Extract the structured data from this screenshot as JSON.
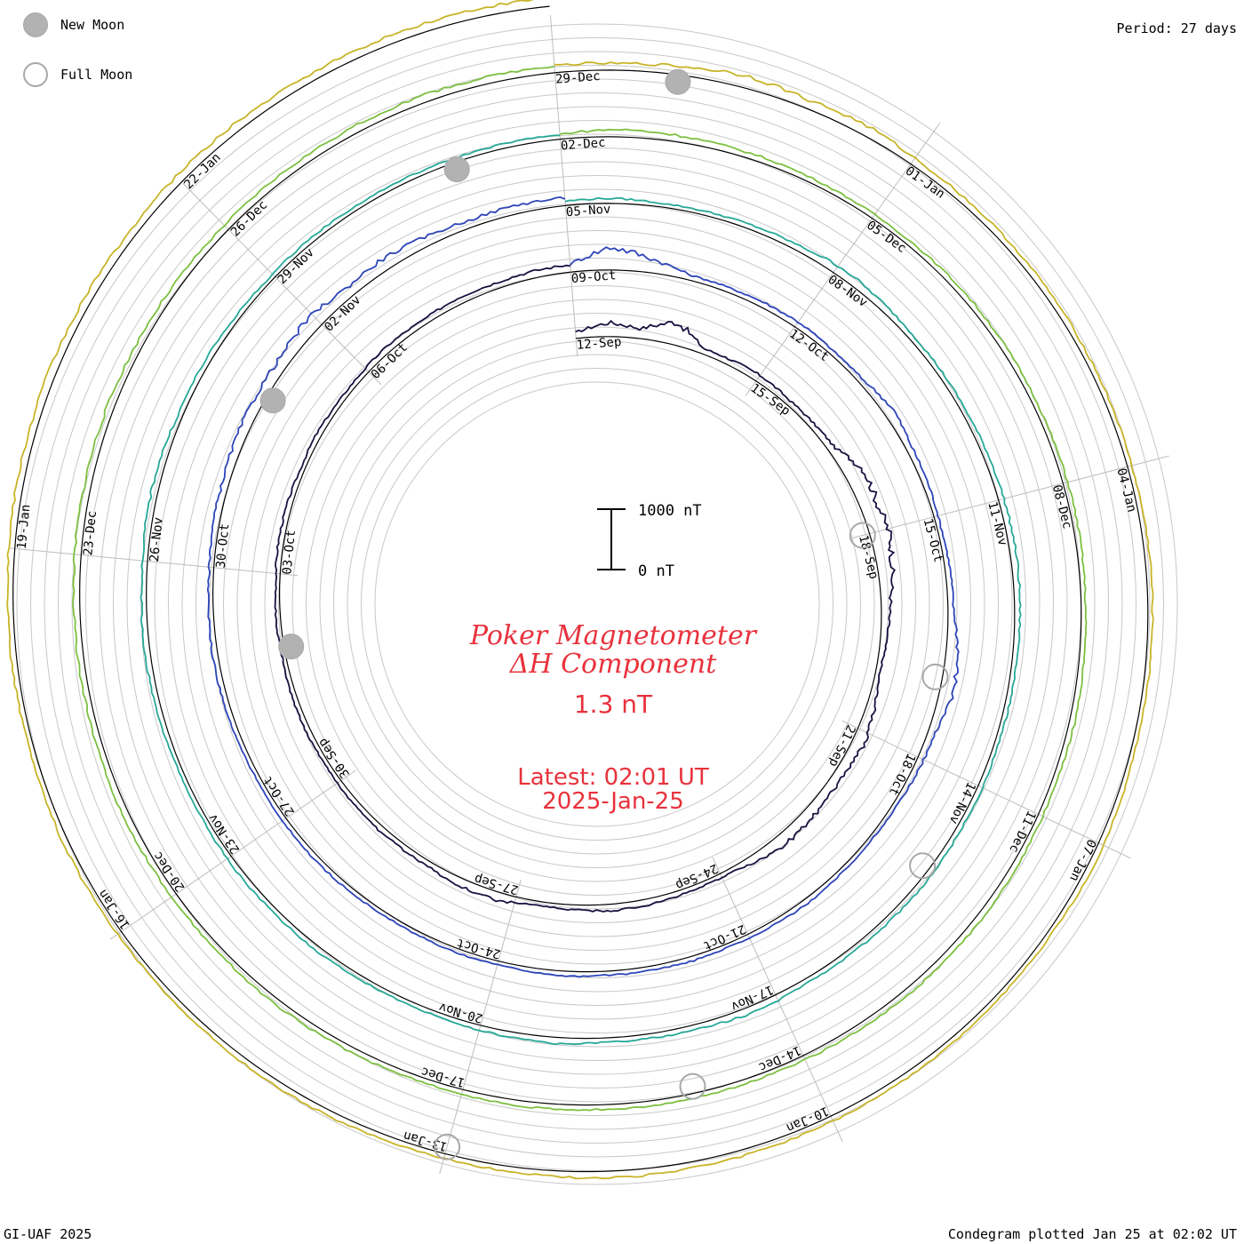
{
  "legend": {
    "new_moon": "New Moon",
    "full_moon": "Full Moon"
  },
  "period": "Period: 27 days",
  "title": {
    "line1": "Poker Magnetometer",
    "line2": "ΔH Component"
  },
  "current_value": "1.3 nT",
  "latest": {
    "time": "Latest: 02:01 UT",
    "date": "2025-Jan-25"
  },
  "scale_bar": {
    "top_label": "1000 nT",
    "bottom_label": "0 nT"
  },
  "footer": {
    "left": "GI-UAF 2025",
    "right": "Condegram plotted Jan 25 at 02:02 UT"
  },
  "chart_data": {
    "type": "line",
    "subtype": "spiral condegram (polar, 27-day period)",
    "period_days": 27,
    "units": "nT",
    "scale_nT": [
      0,
      1000
    ],
    "rotations": [
      {
        "start": "2024-09-12",
        "color": "#1a1040",
        "date_labels": [
          "12-Sep",
          "15-Sep",
          "18-Sep",
          "21-Sep",
          "24-Sep",
          "27-Sep",
          "30-Sep",
          "03-Oct",
          "06-Oct"
        ],
        "amp_nT": [
          180,
          420,
          300,
          700,
          160,
          180,
          210,
          150,
          160,
          200,
          600,
          520,
          580,
          420,
          260,
          180,
          120,
          260,
          360,
          280,
          300,
          340,
          320,
          140,
          120,
          150,
          200,
          190,
          140,
          130,
          260,
          230,
          160,
          150,
          170,
          140,
          120,
          150,
          130,
          110,
          140,
          120,
          160,
          150,
          120,
          150,
          120,
          140,
          180,
          150,
          200,
          180,
          210,
          220
        ]
      },
      {
        "start": "2024-10-09",
        "color": "#2c44b8",
        "date_labels": [
          "09-Oct",
          "12-Oct",
          "15-Oct",
          "18-Oct",
          "21-Oct",
          "24-Oct",
          "27-Oct",
          "30-Oct",
          "02-Nov"
        ],
        "amp_nT": [
          240,
          700,
          420,
          150,
          140,
          160,
          180,
          130,
          140,
          300,
          180,
          160,
          120,
          150,
          160,
          360,
          420,
          200,
          180,
          120,
          100,
          120,
          150,
          130,
          110,
          140,
          130,
          120,
          150,
          110,
          130,
          120,
          100,
          120,
          140,
          130,
          120,
          120,
          140,
          160,
          150,
          130,
          180,
          200,
          260,
          300,
          320,
          420,
          300,
          350,
          280,
          220,
          260,
          230
        ]
      },
      {
        "start": "2024-11-05",
        "color": "#26a896",
        "date_labels": [
          "05-Nov",
          "08-Nov",
          "11-Nov",
          "14-Nov",
          "17-Nov",
          "20-Nov",
          "23-Nov",
          "26-Nov",
          "29-Nov"
        ],
        "amp_nT": [
          130,
          150,
          110,
          120,
          140,
          160,
          260,
          200,
          150,
          140,
          130,
          160,
          170,
          180,
          160,
          150,
          130,
          120,
          140,
          150,
          170,
          160,
          140,
          130,
          220,
          150,
          140,
          130,
          200,
          160,
          130,
          110,
          120,
          140,
          130,
          150,
          120,
          110,
          130,
          150,
          160,
          140,
          180,
          200,
          140,
          150,
          130,
          110,
          140,
          120,
          130,
          120,
          140,
          130
        ]
      },
      {
        "start": "2024-12-02",
        "color": "#7cc040",
        "date_labels": [
          "02-Dec",
          "05-Dec",
          "08-Dec",
          "11-Dec",
          "14-Dec",
          "17-Dec",
          "20-Dec",
          "23-Dec",
          "26-Dec"
        ],
        "amp_nT": [
          150,
          220,
          200,
          170,
          160,
          140,
          130,
          140,
          160,
          150,
          140,
          130,
          150,
          140,
          130,
          150,
          160,
          150,
          140,
          160,
          170,
          180,
          160,
          150,
          130,
          140,
          150,
          140,
          160,
          150,
          140,
          150,
          160,
          170,
          150,
          160,
          170,
          180,
          160,
          170,
          180,
          190,
          200,
          210,
          200,
          190,
          180,
          170,
          190,
          200,
          210,
          220,
          200,
          210
        ]
      },
      {
        "start": "2024-12-29",
        "color": "#c8b428",
        "date_labels": [
          "29-Dec",
          "01-Jan",
          "04-Jan",
          "07-Jan",
          "10-Jan",
          "13-Jan",
          "16-Jan",
          "19-Jan",
          "22-Jan"
        ],
        "amp_nT": [
          220,
          200,
          260,
          380,
          260,
          300,
          200,
          180,
          170,
          160,
          150,
          140,
          130,
          150,
          140,
          130,
          120,
          140,
          160,
          130,
          120,
          140,
          150,
          160,
          170,
          180,
          190,
          200,
          160,
          150,
          140,
          160,
          170,
          150,
          140,
          130,
          150,
          160,
          140,
          150,
          170,
          180,
          190,
          200,
          230,
          220,
          210,
          230,
          240,
          220,
          230,
          250,
          260,
          240
        ]
      }
    ],
    "moon_phases": [
      {
        "phase": "new",
        "date": "2024-10-02"
      },
      {
        "phase": "new",
        "date": "2024-11-01"
      },
      {
        "phase": "new",
        "date": "2024-12-01"
      },
      {
        "phase": "new",
        "date": "2024-12-30"
      },
      {
        "phase": "full",
        "date": "2024-09-18"
      },
      {
        "phase": "full",
        "date": "2024-10-17"
      },
      {
        "phase": "full",
        "date": "2024-11-15"
      },
      {
        "phase": "full",
        "date": "2024-12-15"
      },
      {
        "phase": "full",
        "date": "2025-01-13"
      }
    ]
  }
}
